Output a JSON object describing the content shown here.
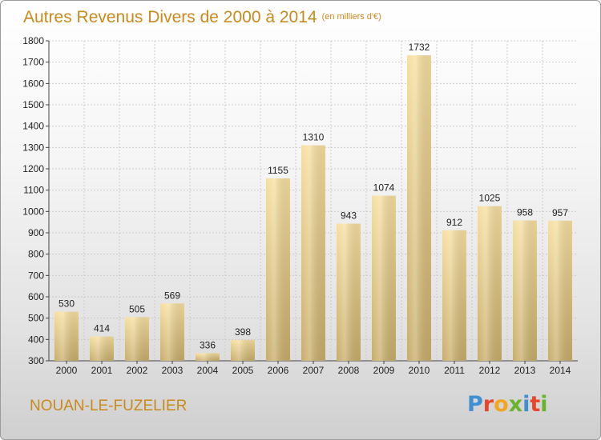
{
  "title": "Autres Revenus Divers de 2000 à 2014",
  "unit_note": "(en milliers d'€)",
  "town": "NOUAN-LE-FUZELIER",
  "logo": {
    "text": "Proxiti",
    "letter_colors": [
      "#3f8fd2",
      "#e8462c",
      "#f2a51d",
      "#6ab42c",
      "#3f8fd2",
      "#e8462c",
      "#6ab42c"
    ]
  },
  "colors": {
    "bar_light": "#f7dfa0",
    "bar_dark": "#c8ad6a",
    "title": "#c98a1d",
    "grid": "#cccccc"
  },
  "chart_data": {
    "type": "bar",
    "title": "Autres Revenus Divers de 2000 à 2014",
    "xlabel": "",
    "ylabel": "",
    "categories": [
      "2000",
      "2001",
      "2002",
      "2003",
      "2004",
      "2005",
      "2006",
      "2007",
      "2008",
      "2009",
      "2010",
      "2011",
      "2012",
      "2013",
      "2014"
    ],
    "values": [
      530,
      414,
      505,
      569,
      336,
      398,
      1155,
      1310,
      943,
      1074,
      1732,
      912,
      1025,
      958,
      957
    ],
    "ylim": [
      300,
      1800
    ],
    "yticks": [
      300,
      400,
      500,
      600,
      700,
      800,
      900,
      1000,
      1100,
      1200,
      1300,
      1400,
      1500,
      1600,
      1700,
      1800
    ],
    "grid": true,
    "legend": "none"
  }
}
